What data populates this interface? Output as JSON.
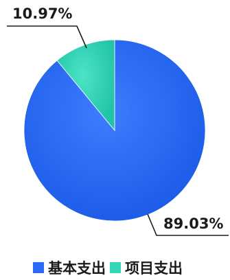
{
  "chart_data": {
    "type": "pie",
    "slices": [
      {
        "name": "基本支出",
        "value": 89.03,
        "label": "89.03%",
        "color": "#2a6af5"
      },
      {
        "name": "项目支出",
        "value": 10.97,
        "label": "10.97%",
        "color": "#34d6b8"
      }
    ],
    "start_angle": "12 o'clock, clockwise",
    "legend_position": "bottom",
    "legend": [
      "基本支出",
      "项目支出"
    ]
  }
}
